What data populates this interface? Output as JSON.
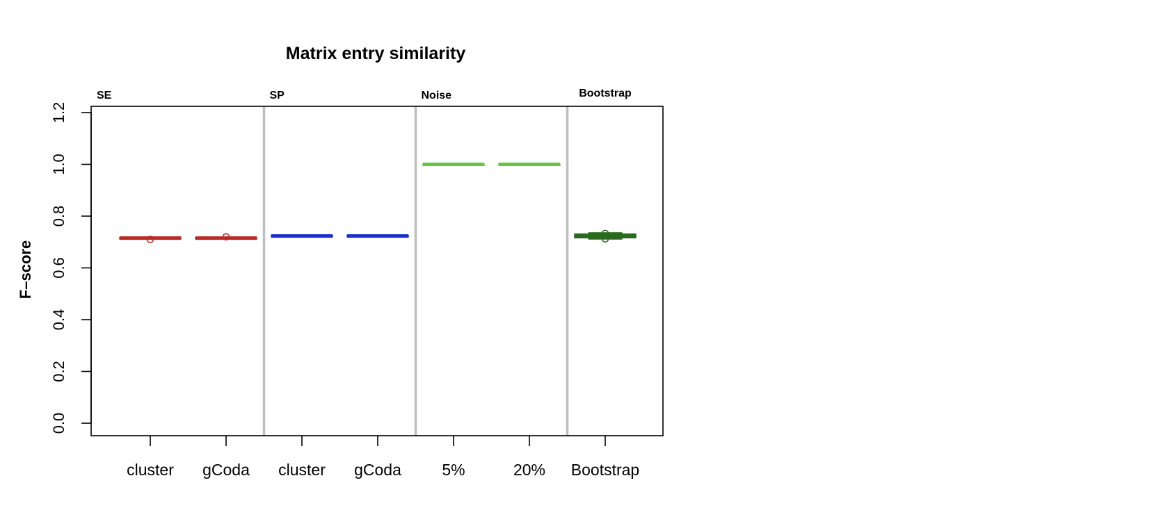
{
  "chart_data": {
    "type": "boxplot",
    "title": "Matrix entry similarity",
    "ylabel": "F–score",
    "xlabel": "",
    "ylim": [
      0,
      1.2
    ],
    "yticks": [
      "0.0",
      "0.2",
      "0.4",
      "0.6",
      "0.8",
      "1.0",
      "1.2"
    ],
    "ytick_values": [
      0,
      0.2,
      0.4,
      0.6,
      0.8,
      1.0,
      1.2
    ],
    "grid": false,
    "groups": [
      {
        "label": "SE",
        "categories": [
          0,
          1
        ]
      },
      {
        "label": "SP",
        "categories": [
          2,
          3
        ]
      },
      {
        "label": "Noise",
        "categories": [
          4,
          5
        ]
      },
      {
        "label": "Bootstrap",
        "categories": [
          6
        ]
      }
    ],
    "categories": [
      "cluster",
      "gCoda",
      "cluster",
      "gCoda",
      "5%",
      "20%",
      "Bootstrap"
    ],
    "boxes": [
      {
        "category": "cluster",
        "group": "SE",
        "median": 0.715,
        "q1": 0.713,
        "q3": 0.717,
        "outliers": [
          0.71
        ],
        "color": "#b82a25"
      },
      {
        "category": "gCoda",
        "group": "SE",
        "median": 0.715,
        "q1": 0.713,
        "q3": 0.717,
        "outliers": [
          0.72
        ],
        "color": "#b82a25"
      },
      {
        "category": "cluster",
        "group": "SP",
        "median": 0.723,
        "q1": 0.721,
        "q3": 0.725,
        "outliers": [],
        "color": "#1a2ec9"
      },
      {
        "category": "gCoda",
        "group": "SP",
        "median": 0.723,
        "q1": 0.721,
        "q3": 0.725,
        "outliers": [],
        "color": "#1a2ec9"
      },
      {
        "category": "5%",
        "group": "Noise",
        "median": 1.0,
        "q1": 0.999,
        "q3": 1.001,
        "outliers": [],
        "color": "#66c444"
      },
      {
        "category": "20%",
        "group": "Noise",
        "median": 1.0,
        "q1": 0.999,
        "q3": 1.001,
        "outliers": [],
        "color": "#66c444"
      },
      {
        "category": "Bootstrap",
        "group": "Bootstrap",
        "median": 0.723,
        "q1": 0.716,
        "q3": 0.731,
        "whisker_low": 0.716,
        "whisker_high": 0.731,
        "outliers": [
          0.712,
          0.733
        ],
        "color": "#2a6a1e"
      }
    ],
    "separator_color": "#bebebe"
  }
}
